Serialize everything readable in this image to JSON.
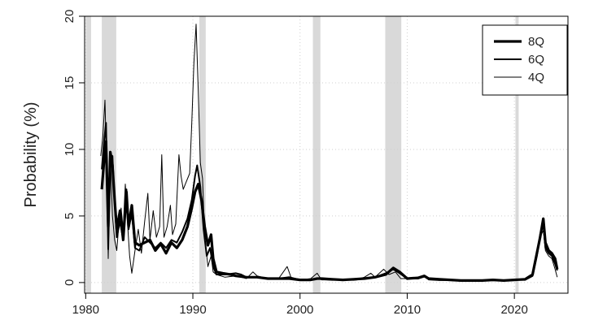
{
  "chart_data": {
    "type": "line",
    "title": "",
    "xlabel": "",
    "ylabel": "Probability (%)",
    "xlim": [
      1979.9,
      2025.0
    ],
    "ylim": [
      -0.8,
      20.0
    ],
    "x_ticks": [
      1980,
      1990,
      2000,
      2010,
      2020
    ],
    "y_ticks": [
      0,
      5,
      10,
      15,
      20
    ],
    "grid": true,
    "legend_position": "top-right",
    "recession_bands": [
      [
        1980.0,
        1980.5
      ],
      [
        1981.5,
        1982.85
      ],
      [
        1990.6,
        1991.2
      ],
      [
        2001.2,
        2001.9
      ],
      [
        2007.95,
        2009.45
      ],
      [
        2020.1,
        2020.4
      ]
    ],
    "series": [
      {
        "name": "8Q",
        "stroke_width": 3.2,
        "points": [
          [
            1981.5,
            7.0
          ],
          [
            1981.7,
            9.0
          ],
          [
            1981.9,
            10.6
          ],
          [
            1982.1,
            4.2
          ],
          [
            1982.3,
            9.8
          ],
          [
            1982.5,
            8.8
          ],
          [
            1982.7,
            6.2
          ],
          [
            1982.9,
            4.0
          ],
          [
            1983.2,
            5.4
          ],
          [
            1983.5,
            3.2
          ],
          [
            1983.8,
            6.8
          ],
          [
            1984.0,
            4.2
          ],
          [
            1984.3,
            5.8
          ],
          [
            1984.6,
            3.0
          ],
          [
            1985.0,
            2.8
          ],
          [
            1985.5,
            3.0
          ],
          [
            1986.0,
            3.2
          ],
          [
            1986.5,
            2.4
          ],
          [
            1987.0,
            2.9
          ],
          [
            1987.5,
            2.2
          ],
          [
            1988.0,
            3.0
          ],
          [
            1988.5,
            2.6
          ],
          [
            1989.0,
            3.2
          ],
          [
            1989.5,
            4.2
          ],
          [
            1989.9,
            5.6
          ],
          [
            1990.2,
            6.8
          ],
          [
            1990.5,
            7.4
          ],
          [
            1990.8,
            6.2
          ],
          [
            1991.1,
            4.2
          ],
          [
            1991.4,
            2.8
          ],
          [
            1991.7,
            3.6
          ],
          [
            1991.9,
            1.8
          ],
          [
            1992.2,
            0.8
          ],
          [
            1992.8,
            0.7
          ],
          [
            1993.5,
            0.6
          ],
          [
            1994.0,
            0.5
          ],
          [
            1995.0,
            0.4
          ],
          [
            1996.0,
            0.4
          ],
          [
            1997.0,
            0.3
          ],
          [
            1998.0,
            0.3
          ],
          [
            1999.0,
            0.3
          ],
          [
            2000.0,
            0.2
          ],
          [
            2001.0,
            0.2
          ],
          [
            2001.6,
            0.3
          ],
          [
            2002.0,
            0.3
          ],
          [
            2003.0,
            0.25
          ],
          [
            2004.0,
            0.2
          ],
          [
            2005.0,
            0.25
          ],
          [
            2006.0,
            0.3
          ],
          [
            2007.0,
            0.4
          ],
          [
            2008.0,
            0.6
          ],
          [
            2008.7,
            1.1
          ],
          [
            2009.3,
            0.8
          ],
          [
            2010.0,
            0.3
          ],
          [
            2011.0,
            0.35
          ],
          [
            2011.6,
            0.5
          ],
          [
            2012.0,
            0.3
          ],
          [
            2013.0,
            0.25
          ],
          [
            2014.0,
            0.2
          ],
          [
            2015.0,
            0.15
          ],
          [
            2016.0,
            0.15
          ],
          [
            2017.0,
            0.15
          ],
          [
            2018.0,
            0.2
          ],
          [
            2019.0,
            0.15
          ],
          [
            2020.0,
            0.2
          ],
          [
            2021.0,
            0.25
          ],
          [
            2021.7,
            0.6
          ],
          [
            2022.1,
            2.2
          ],
          [
            2022.4,
            3.4
          ],
          [
            2022.7,
            4.8
          ],
          [
            2022.9,
            3.0
          ],
          [
            2023.2,
            2.4
          ],
          [
            2023.5,
            2.2
          ],
          [
            2023.8,
            1.8
          ],
          [
            2024.0,
            1.0
          ]
        ]
      },
      {
        "name": "6Q",
        "stroke_width": 2.0,
        "points": [
          [
            1981.5,
            8.5
          ],
          [
            1981.7,
            10.5
          ],
          [
            1981.9,
            12.0
          ],
          [
            1982.1,
            2.5
          ],
          [
            1982.3,
            9.6
          ],
          [
            1982.5,
            9.5
          ],
          [
            1982.7,
            6.0
          ],
          [
            1982.9,
            3.4
          ],
          [
            1983.2,
            4.6
          ],
          [
            1983.5,
            3.2
          ],
          [
            1983.8,
            7.0
          ],
          [
            1984.0,
            4.0
          ],
          [
            1984.3,
            5.2
          ],
          [
            1984.6,
            2.6
          ],
          [
            1985.0,
            2.4
          ],
          [
            1985.5,
            3.4
          ],
          [
            1986.0,
            3.0
          ],
          [
            1986.5,
            2.6
          ],
          [
            1987.0,
            3.0
          ],
          [
            1987.5,
            2.6
          ],
          [
            1988.0,
            3.2
          ],
          [
            1988.5,
            3.0
          ],
          [
            1989.0,
            3.8
          ],
          [
            1989.5,
            4.8
          ],
          [
            1989.9,
            6.2
          ],
          [
            1990.2,
            8.0
          ],
          [
            1990.4,
            8.8
          ],
          [
            1990.7,
            7.2
          ],
          [
            1991.0,
            4.0
          ],
          [
            1991.3,
            2.0
          ],
          [
            1991.6,
            2.6
          ],
          [
            1991.9,
            1.2
          ],
          [
            1992.2,
            0.6
          ],
          [
            1993.0,
            0.6
          ],
          [
            1994.0,
            0.7
          ],
          [
            1994.5,
            0.6
          ],
          [
            1995.0,
            0.4
          ],
          [
            1996.0,
            0.4
          ],
          [
            1997.0,
            0.3
          ],
          [
            1998.0,
            0.3
          ],
          [
            1999.0,
            0.4
          ],
          [
            2000.0,
            0.2
          ],
          [
            2001.0,
            0.2
          ],
          [
            2001.6,
            0.3
          ],
          [
            2002.0,
            0.25
          ],
          [
            2003.0,
            0.2
          ],
          [
            2004.0,
            0.2
          ],
          [
            2005.0,
            0.2
          ],
          [
            2006.0,
            0.3
          ],
          [
            2007.0,
            0.4
          ],
          [
            2008.0,
            0.7
          ],
          [
            2008.7,
            1.0
          ],
          [
            2009.3,
            0.7
          ],
          [
            2010.0,
            0.3
          ],
          [
            2011.0,
            0.3
          ],
          [
            2011.6,
            0.45
          ],
          [
            2012.0,
            0.25
          ],
          [
            2013.0,
            0.2
          ],
          [
            2014.0,
            0.2
          ],
          [
            2015.0,
            0.15
          ],
          [
            2016.0,
            0.15
          ],
          [
            2017.0,
            0.15
          ],
          [
            2018.0,
            0.2
          ],
          [
            2019.0,
            0.15
          ],
          [
            2020.0,
            0.2
          ],
          [
            2021.0,
            0.2
          ],
          [
            2021.7,
            0.5
          ],
          [
            2022.1,
            2.0
          ],
          [
            2022.4,
            3.6
          ],
          [
            2022.7,
            4.4
          ],
          [
            2022.9,
            2.6
          ],
          [
            2023.2,
            2.2
          ],
          [
            2023.5,
            2.0
          ],
          [
            2023.8,
            1.4
          ],
          [
            2024.0,
            0.9
          ]
        ]
      },
      {
        "name": "4Q",
        "stroke_width": 1.0,
        "points": [
          [
            1981.4,
            9.5
          ],
          [
            1981.6,
            11.0
          ],
          [
            1981.8,
            13.7
          ],
          [
            1982.0,
            7.0
          ],
          [
            1982.1,
            1.8
          ],
          [
            1982.3,
            9.7
          ],
          [
            1982.5,
            5.0
          ],
          [
            1982.7,
            3.2
          ],
          [
            1982.9,
            2.4
          ],
          [
            1983.1,
            4.4
          ],
          [
            1983.3,
            5.6
          ],
          [
            1983.5,
            4.0
          ],
          [
            1983.7,
            7.4
          ],
          [
            1983.9,
            4.5
          ],
          [
            1984.1,
            2.0
          ],
          [
            1984.3,
            0.7
          ],
          [
            1984.6,
            2.4
          ],
          [
            1984.9,
            4.0
          ],
          [
            1985.2,
            2.2
          ],
          [
            1985.5,
            4.6
          ],
          [
            1985.8,
            6.7
          ],
          [
            1986.0,
            3.2
          ],
          [
            1986.3,
            5.4
          ],
          [
            1986.6,
            3.4
          ],
          [
            1986.9,
            4.2
          ],
          [
            1987.1,
            9.6
          ],
          [
            1987.3,
            3.4
          ],
          [
            1987.6,
            4.2
          ],
          [
            1987.9,
            5.8
          ],
          [
            1988.1,
            3.6
          ],
          [
            1988.4,
            4.4
          ],
          [
            1988.7,
            9.6
          ],
          [
            1988.9,
            8.0
          ],
          [
            1989.1,
            7.0
          ],
          [
            1989.4,
            7.6
          ],
          [
            1989.7,
            8.2
          ],
          [
            1989.9,
            12.0
          ],
          [
            1990.1,
            16.5
          ],
          [
            1990.3,
            19.4
          ],
          [
            1990.5,
            14.5
          ],
          [
            1990.7,
            9.0
          ],
          [
            1990.9,
            7.8
          ],
          [
            1991.1,
            3.5
          ],
          [
            1991.4,
            1.2
          ],
          [
            1991.7,
            2.0
          ],
          [
            1991.9,
            0.8
          ],
          [
            1992.2,
            0.6
          ],
          [
            1993.0,
            0.4
          ],
          [
            1994.0,
            0.5
          ],
          [
            1995.0,
            0.3
          ],
          [
            1995.6,
            0.8
          ],
          [
            1996.0,
            0.5
          ],
          [
            1997.0,
            0.3
          ],
          [
            1998.0,
            0.3
          ],
          [
            1998.8,
            1.2
          ],
          [
            1999.2,
            0.3
          ],
          [
            2000.0,
            0.2
          ],
          [
            2001.0,
            0.3
          ],
          [
            2001.6,
            0.7
          ],
          [
            2002.0,
            0.2
          ],
          [
            2003.0,
            0.2
          ],
          [
            2004.0,
            0.2
          ],
          [
            2005.0,
            0.2
          ],
          [
            2006.0,
            0.4
          ],
          [
            2006.6,
            0.7
          ],
          [
            2007.0,
            0.4
          ],
          [
            2007.8,
            1.0
          ],
          [
            2008.3,
            0.6
          ],
          [
            2008.9,
            0.8
          ],
          [
            2009.4,
            0.3
          ],
          [
            2010.0,
            0.3
          ],
          [
            2011.0,
            0.3
          ],
          [
            2011.6,
            0.5
          ],
          [
            2012.0,
            0.2
          ],
          [
            2013.0,
            0.15
          ],
          [
            2014.0,
            0.15
          ],
          [
            2015.0,
            0.1
          ],
          [
            2016.0,
            0.1
          ],
          [
            2017.0,
            0.1
          ],
          [
            2018.0,
            0.2
          ],
          [
            2019.0,
            0.1
          ],
          [
            2020.0,
            0.2
          ],
          [
            2021.0,
            0.2
          ],
          [
            2021.6,
            0.5
          ],
          [
            2021.9,
            1.2
          ],
          [
            2022.2,
            2.8
          ],
          [
            2022.5,
            3.6
          ],
          [
            2022.7,
            3.9
          ],
          [
            2022.9,
            2.4
          ],
          [
            2023.2,
            2.0
          ],
          [
            2023.5,
            1.8
          ],
          [
            2023.8,
            1.0
          ],
          [
            2024.0,
            0.4
          ]
        ]
      }
    ]
  }
}
